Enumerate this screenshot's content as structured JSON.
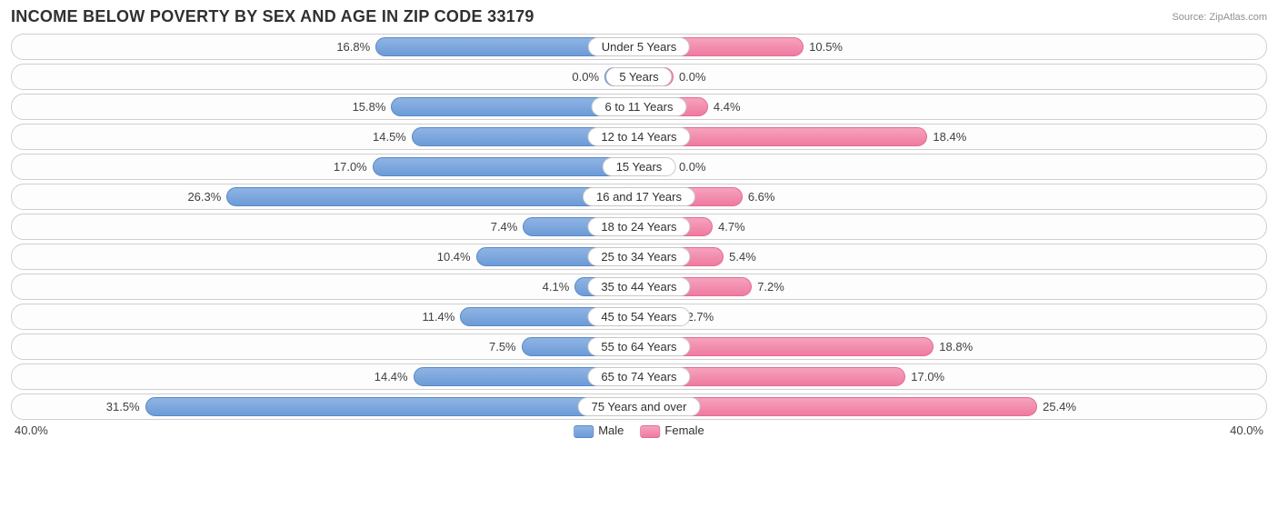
{
  "title": "INCOME BELOW POVERTY BY SEX AND AGE IN ZIP CODE 33179",
  "source": "Source: ZipAtlas.com",
  "chart": {
    "type": "diverging-bar",
    "axis_max": 40.0,
    "axis_label_left": "40.0%",
    "axis_label_right": "40.0%",
    "male_color": "#6c9bd8",
    "female_color": "#ef7ba0",
    "row_border_color": "#cfcfcf",
    "background_color": "#ffffff",
    "text_color": "#404040",
    "label_fontsize": 13,
    "title_fontsize": 18,
    "rows": [
      {
        "category": "Under 5 Years",
        "male": 16.8,
        "female": 10.5,
        "male_label": "16.8%",
        "female_label": "10.5%"
      },
      {
        "category": "5 Years",
        "male": 0.0,
        "female": 0.0,
        "male_label": "0.0%",
        "female_label": "0.0%"
      },
      {
        "category": "6 to 11 Years",
        "male": 15.8,
        "female": 4.4,
        "male_label": "15.8%",
        "female_label": "4.4%"
      },
      {
        "category": "12 to 14 Years",
        "male": 14.5,
        "female": 18.4,
        "male_label": "14.5%",
        "female_label": "18.4%"
      },
      {
        "category": "15 Years",
        "male": 17.0,
        "female": 0.0,
        "male_label": "17.0%",
        "female_label": "0.0%"
      },
      {
        "category": "16 and 17 Years",
        "male": 26.3,
        "female": 6.6,
        "male_label": "26.3%",
        "female_label": "6.6%"
      },
      {
        "category": "18 to 24 Years",
        "male": 7.4,
        "female": 4.7,
        "male_label": "7.4%",
        "female_label": "4.7%"
      },
      {
        "category": "25 to 34 Years",
        "male": 10.4,
        "female": 5.4,
        "male_label": "10.4%",
        "female_label": "5.4%"
      },
      {
        "category": "35 to 44 Years",
        "male": 4.1,
        "female": 7.2,
        "male_label": "4.1%",
        "female_label": "7.2%"
      },
      {
        "category": "45 to 54 Years",
        "male": 11.4,
        "female": 2.7,
        "male_label": "11.4%",
        "female_label": "2.7%"
      },
      {
        "category": "55 to 64 Years",
        "male": 7.5,
        "female": 18.8,
        "male_label": "7.5%",
        "female_label": "18.8%"
      },
      {
        "category": "65 to 74 Years",
        "male": 14.4,
        "female": 17.0,
        "male_label": "14.4%",
        "female_label": "17.0%"
      },
      {
        "category": "75 Years and over",
        "male": 31.5,
        "female": 25.4,
        "male_label": "31.5%",
        "female_label": "25.4%"
      }
    ]
  },
  "legend": {
    "male": "Male",
    "female": "Female"
  }
}
